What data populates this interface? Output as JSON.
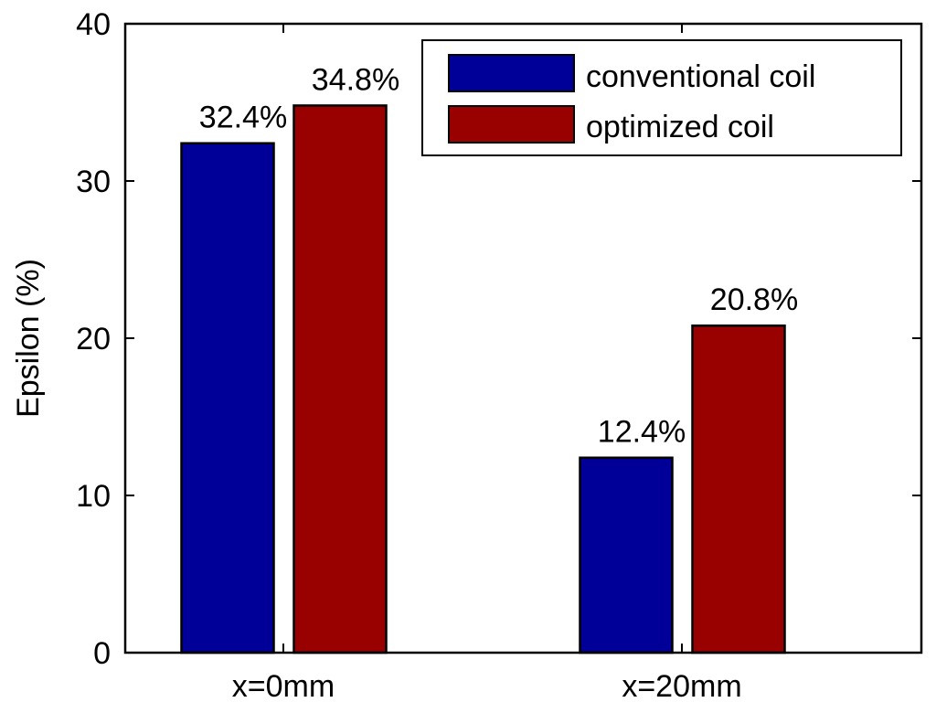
{
  "chart_data": {
    "type": "bar",
    "title": "",
    "xlabel": "",
    "ylabel": "Epsilon (%)",
    "ylim": [
      0,
      40
    ],
    "yticks": [
      0,
      10,
      20,
      30,
      40
    ],
    "categories": [
      "x=0mm",
      "x=20mm"
    ],
    "series": [
      {
        "name": "conventional coil",
        "values": [
          32.4,
          12.4
        ],
        "labels": [
          "32.4%",
          "12.4%"
        ],
        "color": "#000099"
      },
      {
        "name": "optimized coil",
        "values": [
          34.8,
          20.8
        ],
        "labels": [
          "34.8%",
          "20.8%"
        ],
        "color": "#990000"
      }
    ],
    "grid": false,
    "legend": "top-right"
  }
}
